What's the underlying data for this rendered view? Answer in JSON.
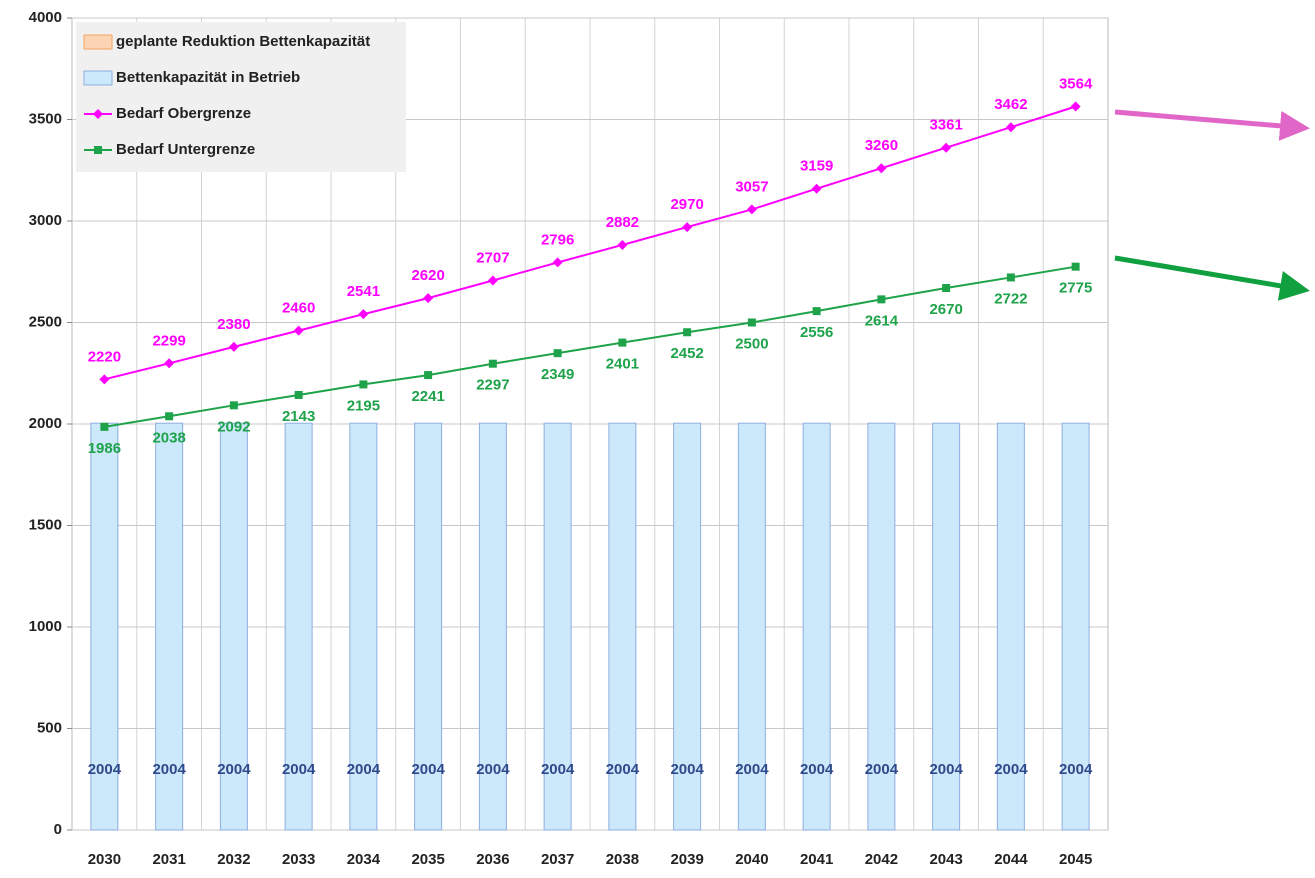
{
  "chart_data": {
    "type": "bar_line",
    "categories": [
      "2030",
      "2031",
      "2032",
      "2033",
      "2034",
      "2035",
      "2036",
      "2037",
      "2038",
      "2039",
      "2040",
      "2041",
      "2042",
      "2043",
      "2044",
      "2045"
    ],
    "series": [
      {
        "name": "geplante Reduktion Bettenkapazität",
        "kind": "bar",
        "color": "#fbd4b4",
        "stroke": "#f4a460",
        "values": [
          0,
          0,
          0,
          0,
          0,
          0,
          0,
          0,
          0,
          0,
          0,
          0,
          0,
          0,
          0,
          0
        ]
      },
      {
        "name": "Bettenkapazität in Betrieb",
        "kind": "bar",
        "color": "#cce8fb",
        "stroke": "#8faee0",
        "label_color": "#2e4a8a",
        "values": [
          2004,
          2004,
          2004,
          2004,
          2004,
          2004,
          2004,
          2004,
          2004,
          2004,
          2004,
          2004,
          2004,
          2004,
          2004,
          2004
        ]
      },
      {
        "name": "Bedarf Obergrenze",
        "kind": "line",
        "marker": "diamond",
        "color": "#ff00ff",
        "values": [
          2220,
          2299,
          2380,
          2460,
          2541,
          2620,
          2707,
          2796,
          2882,
          2970,
          3057,
          3159,
          3260,
          3361,
          3462,
          3564
        ]
      },
      {
        "name": "Bedarf Untergrenze",
        "kind": "line",
        "marker": "square",
        "color": "#1fa34a",
        "values": [
          1986,
          2038,
          2092,
          2143,
          2195,
          2241,
          2297,
          2349,
          2401,
          2452,
          2500,
          2556,
          2614,
          2670,
          2722,
          2775
        ]
      }
    ],
    "ylim": [
      0,
      4000
    ],
    "yticks": [
      0,
      500,
      1000,
      1500,
      2000,
      2500,
      3000,
      3500,
      4000
    ],
    "grid": true,
    "legend": "top-left"
  }
}
